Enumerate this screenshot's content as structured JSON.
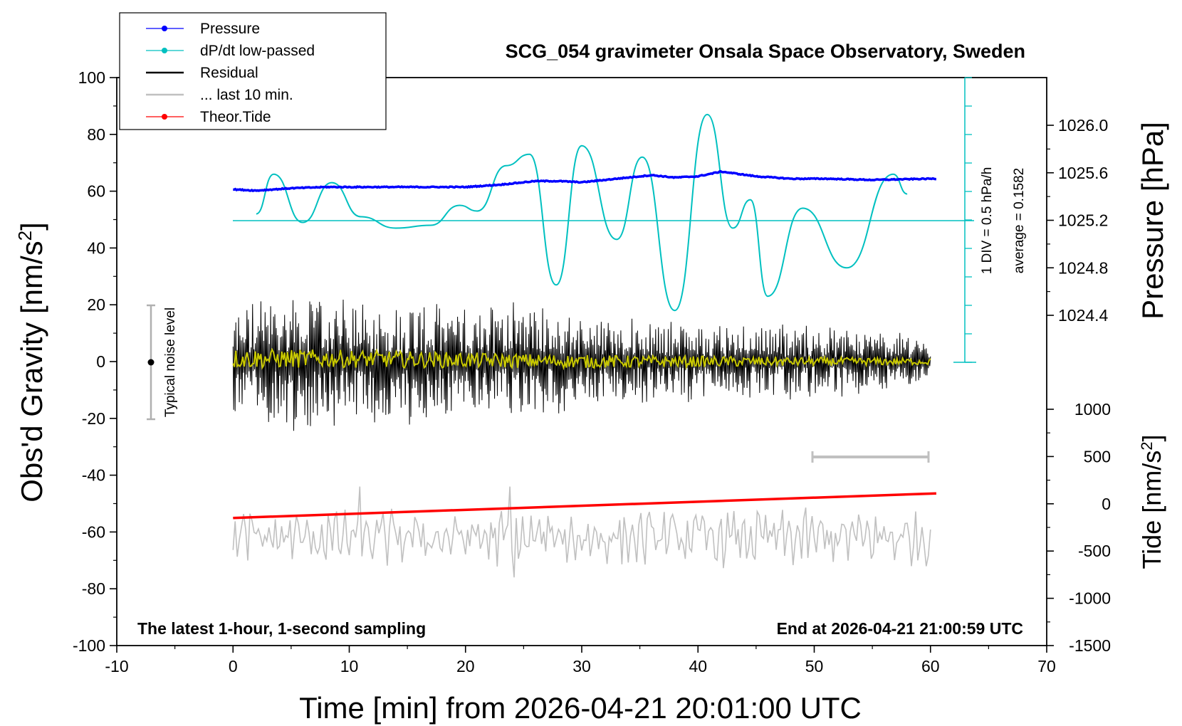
{
  "title": "SCG_054 gravimeter Onsala Space Observatory, Sweden",
  "x_axis_label": "Time [min] from 2026-04-21 20:01:00 UTC",
  "y_left_label": "Obs'd Gravity [nm/s",
  "y_left_label_sup": "2",
  "y_left_label_end": "]",
  "y_right_pressure_label": "Pressure [hPa]",
  "y_right_tide_label": "Tide [nm/s",
  "y_right_tide_label_sup": "2",
  "y_right_tide_label_end": "]",
  "footer_left": "The latest 1-hour, 1-second sampling",
  "footer_right": "End at 2026-04-21 21:00:59 UTC",
  "noise_label": "Typical noise level",
  "div_label": "1 DIV = 0.5 hPa/h",
  "average_label": "average = 0.1582",
  "legend": [
    {
      "label": "Pressure",
      "color": "#0000ff",
      "marker": true
    },
    {
      "label": "dP/dt low-passed",
      "color": "#00c0c0",
      "marker": true
    },
    {
      "label": "Residual",
      "color": "#000000",
      "marker": false
    },
    {
      "label": "... last 10 min.",
      "color": "#c0c0c0",
      "marker": false
    },
    {
      "label": "Theor.Tide",
      "color": "#ff0000",
      "marker": true
    }
  ],
  "colors": {
    "pressure": "#0000ff",
    "dpdt": "#00c0c0",
    "residual": "#000000",
    "residual_smooth": "#c8c800",
    "last10": "#c0c0c0",
    "tide": "#ff0000"
  },
  "chart_data": {
    "type": "line",
    "x_axis": {
      "range": [
        -10,
        70
      ],
      "ticks": [
        -10,
        0,
        10,
        20,
        30,
        40,
        50,
        60,
        70
      ]
    },
    "y_left": {
      "range": [
        -100,
        100
      ],
      "ticks": [
        -100,
        -80,
        -60,
        -40,
        -20,
        0,
        20,
        40,
        60,
        80,
        100
      ]
    },
    "y_right_pressure": {
      "ticks": [
        1024.4,
        1024.8,
        1025.2,
        1025.6,
        1026.0
      ]
    },
    "y_right_tide": {
      "ticks": [
        -1500,
        -1000,
        -500,
        0,
        500,
        1000
      ]
    },
    "series": [
      {
        "name": "Pressure",
        "units": "hPa",
        "x": [
          0,
          2,
          5,
          8,
          12,
          16,
          20,
          23,
          26,
          28,
          30,
          33,
          36,
          38,
          40,
          42,
          45,
          48,
          51,
          55,
          60
        ],
        "y": [
          1025.46,
          1025.45,
          1025.47,
          1025.48,
          1025.48,
          1025.48,
          1025.48,
          1025.5,
          1025.53,
          1025.53,
          1025.52,
          1025.55,
          1025.58,
          1025.56,
          1025.57,
          1025.61,
          1025.57,
          1025.55,
          1025.55,
          1025.54,
          1025.55
        ]
      },
      {
        "name": "dP/dt low-passed",
        "units": "nm/s2 axis scale",
        "x": [
          2,
          3.5,
          6,
          8.5,
          11,
          14,
          17,
          19.5,
          21,
          23.5,
          25.5,
          27.8,
          30,
          33,
          35.2,
          38,
          40.8,
          43,
          44.5,
          46,
          49,
          52.8,
          56.8,
          58
        ],
        "y": [
          52,
          66,
          49,
          63,
          51,
          47,
          48,
          55,
          53,
          69,
          73,
          27,
          76,
          43,
          72,
          18,
          87,
          47,
          57,
          23,
          54,
          33,
          66,
          59
        ]
      },
      {
        "name": "Residual",
        "units": "nm/s2",
        "x": [
          0,
          5,
          10,
          15,
          20,
          25,
          30,
          35,
          40,
          45,
          50,
          55,
          60
        ],
        "y_max": [
          20,
          25,
          22,
          23,
          18,
          25,
          15,
          16,
          14,
          14,
          13,
          12,
          8
        ],
        "y_min": [
          -17,
          -21,
          -19,
          -20,
          -19,
          -16,
          -15,
          -14,
          -12,
          -12,
          -11,
          -10,
          -7
        ]
      },
      {
        "name": "Residual smoothed",
        "units": "nm/s2",
        "x": [
          0,
          10,
          20,
          30,
          40,
          50,
          60
        ],
        "y": [
          1,
          1,
          0.5,
          0,
          0,
          0,
          0
        ]
      },
      {
        "name": "... last 10 min.",
        "units": "nm/s2 axis scale",
        "x": [
          0,
          60
        ],
        "y_center": [
          -62,
          -62
        ],
        "y_range": [
          -76,
          -44
        ]
      },
      {
        "name": "Theor.Tide",
        "units": "nm/s2",
        "x": [
          0,
          60.5
        ],
        "y": [
          -150,
          110
        ]
      }
    ],
    "annotations": [
      {
        "type": "noise_bar",
        "x": -7,
        "y_range": [
          -20,
          20
        ]
      },
      {
        "type": "segment",
        "x_range": [
          50,
          60
        ],
        "y": -33
      }
    ]
  }
}
